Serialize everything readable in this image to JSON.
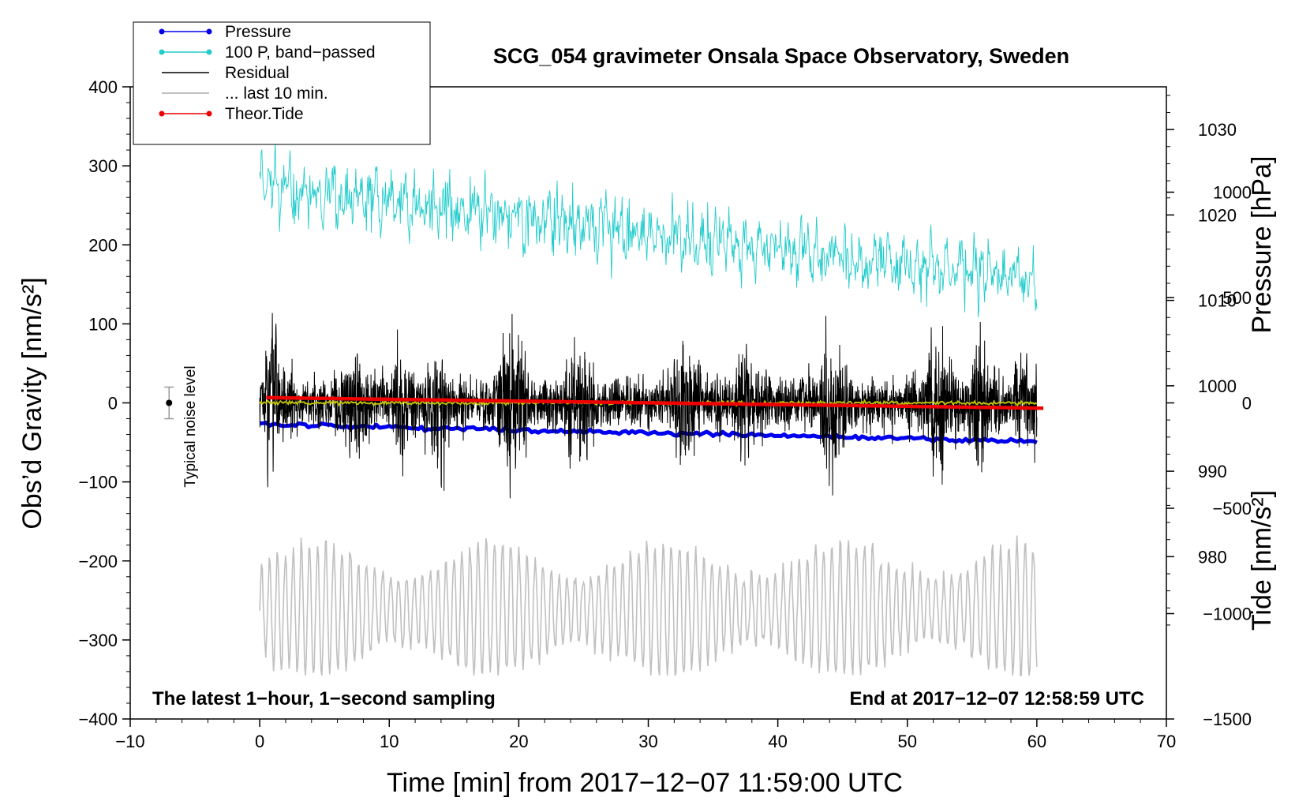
{
  "chart_data": {
    "type": "line",
    "title": "SCG_054 gravimeter Onsala Space Observatory, Sweden",
    "xlabel": "Time [min] from 2017−12−07 11:59:00 UTC",
    "ylabel": "Obs’d Gravity [nm/s²]",
    "ylabel_right_top": "Pressure [hPa]",
    "ylabel_right_bottom": "Tide [nm/s²]",
    "xlim": [
      -10,
      70
    ],
    "ylim": [
      -400,
      400
    ],
    "pressure_axis_range": [
      961,
      1035
    ],
    "tide_axis_range": [
      -1500,
      1500
    ],
    "x_ticks": [
      {
        "value": -10,
        "label": "−10"
      },
      {
        "value": 0,
        "label": "0"
      },
      {
        "value": 10,
        "label": "10"
      },
      {
        "value": 20,
        "label": "20"
      },
      {
        "value": 30,
        "label": "30"
      },
      {
        "value": 40,
        "label": "40"
      },
      {
        "value": 50,
        "label": "50"
      },
      {
        "value": 60,
        "label": "60"
      },
      {
        "value": 70,
        "label": "70"
      }
    ],
    "y_ticks": [
      {
        "value": 400,
        "label": "400"
      },
      {
        "value": 300,
        "label": "300"
      },
      {
        "value": 200,
        "label": "200"
      },
      {
        "value": 100,
        "label": "100"
      },
      {
        "value": 0,
        "label": "0"
      },
      {
        "value": -100,
        "label": "−100"
      },
      {
        "value": -200,
        "label": "−200"
      },
      {
        "value": -300,
        "label": "−300"
      },
      {
        "value": -400,
        "label": "−400"
      }
    ],
    "pressure_ticks": [
      {
        "value": 1030,
        "label": "1030"
      },
      {
        "value": 1020,
        "label": "1020"
      },
      {
        "value": 1010,
        "label": "1010"
      },
      {
        "value": 1000,
        "label": "1000"
      },
      {
        "value": 990,
        "label": "990"
      },
      {
        "value": 980,
        "label": "980"
      }
    ],
    "tide_ticks": [
      {
        "value": 1000,
        "label": "1000"
      },
      {
        "value": 500,
        "label": "500"
      },
      {
        "value": 0,
        "label": "0"
      },
      {
        "value": -500,
        "label": "−500"
      },
      {
        "value": -1000,
        "label": "−1000"
      },
      {
        "value": -1500,
        "label": "−1500"
      }
    ],
    "annotations": {
      "bottom_left": "The latest 1−hour, 1−second sampling",
      "bottom_right": "End at 2017−12−07 12:58:59 UTC",
      "noise_label": "Typical noise level"
    },
    "noise_bar": {
      "x": -7,
      "center": 0,
      "half_range": 20
    },
    "legend": {
      "placement": "top-left",
      "entries": [
        {
          "label": "Pressure",
          "color": "#0000ee",
          "marker": true
        },
        {
          "label": "100 P, band−passed",
          "color": "#22cccc",
          "marker": true
        },
        {
          "label": "Residual",
          "color": "#000000",
          "marker": false
        },
        {
          "label": "... last 10 min.",
          "color": "#c0c0c0",
          "marker": false
        },
        {
          "label": "Theor.Tide",
          "color": "#ee0000",
          "marker": true
        }
      ]
    },
    "series": [
      {
        "name": "Pressure",
        "axis": "pressure",
        "color": "#0000ee",
        "x_start": 0,
        "x_end": 60,
        "start": 995.5,
        "end": 993.5,
        "jitter": 0.25
      },
      {
        "name": "100 P, band−passed",
        "axis": "gravity",
        "color": "#22cccc",
        "x_start": 0,
        "x_end": 60,
        "center_start": 275,
        "center_end": 155,
        "amp_start": 32,
        "amp_end": 28,
        "ymin": 98,
        "ymax": 330,
        "n": 1100
      },
      {
        "name": "Residual",
        "axis": "gravity",
        "color": "#000000",
        "x_start": 0,
        "x_end": 60,
        "base_amp": 32,
        "bursts": [
          {
            "x": 1.0,
            "amp": 55
          },
          {
            "x": 7.4,
            "amp": 50
          },
          {
            "x": 10.8,
            "amp": 40
          },
          {
            "x": 13.8,
            "amp": 52
          },
          {
            "x": 19.5,
            "amp": 70
          },
          {
            "x": 24.5,
            "amp": 45
          },
          {
            "x": 32.8,
            "amp": 65
          },
          {
            "x": 37.8,
            "amp": 40
          },
          {
            "x": 44.2,
            "amp": 75
          },
          {
            "x": 52.4,
            "amp": 65
          },
          {
            "x": 55.6,
            "amp": 45
          },
          {
            "x": 59.4,
            "amp": 45
          }
        ],
        "ymin": -138,
        "ymax": 140,
        "n": 3200
      },
      {
        "name": "Residual (smoothed)",
        "axis": "gravity",
        "color": "#c8c800",
        "x_start": 0,
        "x_end": 60,
        "level": 0,
        "jitter": 2.5
      },
      {
        "name": "... last 10 min.",
        "axis": "gravity",
        "color": "#c0c0c0",
        "x_start": 0,
        "x_end": 60,
        "center": -262,
        "period_min": 0.62,
        "amp_base": 42,
        "amp_peak": 85,
        "ymin": -345,
        "ymax": -158,
        "n": 900
      },
      {
        "name": "Theor.Tide",
        "axis": "tide",
        "color": "#ee0000",
        "x_start": 0.5,
        "x_end": 60.5,
        "start": 25,
        "end": -25
      }
    ]
  }
}
